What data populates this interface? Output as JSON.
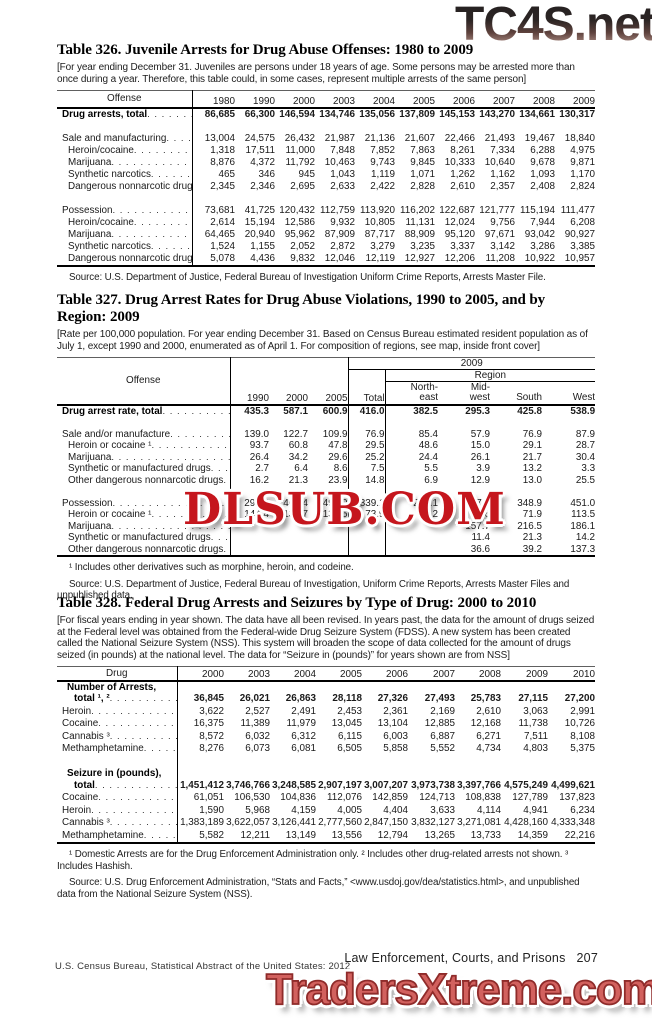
{
  "watermarks": {
    "top": "TC4S.net",
    "middle": "DLSUB.COM",
    "bottom": "TradersXtreme.com"
  },
  "colors": {
    "watermark_top_gradient": [
      "#242021",
      "#d0b8ad"
    ],
    "watermark_middle_red": "#c5161d",
    "watermark_bottom_salmon": "#d2615e"
  },
  "footer": {
    "section": "Law Enforcement, Courts, and Prisons",
    "page": "207",
    "imprint": "U.S. Census Bureau, Statistical Abstract of the United States: 2012"
  },
  "tables": [
    {
      "title": "Table 326. Juvenile Arrests for Drug Abuse Offenses: 1980 to 2009",
      "note": "[For year ending December 31. Juveniles are persons under 18 years of age. Some persons may be arrested more than once during a year. Therefore, this table could, in some cases, represent multiple arrests of the same person]",
      "header": {
        "kind": "years",
        "label": "Offense",
        "years": [
          "1980",
          "1990",
          "2000",
          "2003",
          "2004",
          "2005",
          "2006",
          "2007",
          "2008",
          "2009"
        ]
      },
      "ncols": 10,
      "vrules": [
        0
      ],
      "rows": [
        {
          "label": "Drug arrests, total",
          "b": 1,
          "v": [
            "86,685",
            "66,300",
            "146,594",
            "134,746",
            "135,056",
            "137,809",
            "145,153",
            "143,270",
            "134,661",
            "130,317"
          ]
        },
        {
          "gap": 1
        },
        {
          "label": "Sale and manufacturing",
          "v": [
            "13,004",
            "24,575",
            "26,432",
            "21,987",
            "21,136",
            "21,607",
            "22,466",
            "21,493",
            "19,467",
            "18,840"
          ]
        },
        {
          "label": "Heroin/cocaine",
          "i": 1,
          "v": [
            "1,318",
            "17,511",
            "11,000",
            "7,848",
            "7,852",
            "7,863",
            "8,261",
            "7,334",
            "6,288",
            "4,975"
          ]
        },
        {
          "label": "Marijuana",
          "i": 1,
          "v": [
            "8,876",
            "4,372",
            "11,792",
            "10,463",
            "9,743",
            "9,845",
            "10,333",
            "10,640",
            "9,678",
            "9,871"
          ]
        },
        {
          "label": "Synthetic narcotics",
          "i": 1,
          "v": [
            "465",
            "346",
            "945",
            "1,043",
            "1,119",
            "1,071",
            "1,262",
            "1,162",
            "1,093",
            "1,170"
          ]
        },
        {
          "label": "Dangerous nonnarcotic drugs",
          "i": 1,
          "v": [
            "2,345",
            "2,346",
            "2,695",
            "2,633",
            "2,422",
            "2,828",
            "2,610",
            "2,357",
            "2,408",
            "2,824"
          ]
        },
        {
          "gap": 1
        },
        {
          "label": "Possession",
          "v": [
            "73,681",
            "41,725",
            "120,432",
            "112,759",
            "113,920",
            "116,202",
            "122,687",
            "121,777",
            "115,194",
            "111,477"
          ]
        },
        {
          "label": "Heroin/cocaine",
          "i": 1,
          "v": [
            "2,614",
            "15,194",
            "12,586",
            "9,932",
            "10,805",
            "11,131",
            "12,024",
            "9,756",
            "7,944",
            "6,208"
          ]
        },
        {
          "label": "Marijuana",
          "i": 1,
          "v": [
            "64,465",
            "20,940",
            "95,962",
            "87,909",
            "87,717",
            "88,909",
            "95,120",
            "97,671",
            "93,042",
            "90,927"
          ]
        },
        {
          "label": "Synthetic narcotics",
          "i": 1,
          "v": [
            "1,524",
            "1,155",
            "2,052",
            "2,872",
            "3,279",
            "3,235",
            "3,337",
            "3,142",
            "3,286",
            "3,385"
          ]
        },
        {
          "label": "Dangerous nonnarcotic drugs",
          "i": 1,
          "v": [
            "5,078",
            "4,436",
            "9,832",
            "12,046",
            "12,119",
            "12,927",
            "12,206",
            "11,208",
            "10,922",
            "10,957"
          ]
        }
      ],
      "footnote": "",
      "source": "Source: U.S. Department of Justice, Federal Bureau of Investigation Uniform Crime Reports, Arrests Master File."
    },
    {
      "title": "Table 327. Drug Arrest Rates for Drug Abuse Violations, 1990 to 2005, and by Region: 2009",
      "note": "[Rate per 100,000 population. For year ending December 31. Based on Census Bureau estimated resident population as of July 1, except 1990 and 2000, enumerated as of April 1. For composition of regions, see map, inside front cover]",
      "header": {
        "kind": "regions",
        "label": "Offense",
        "years": [
          "1990",
          "2000",
          "2005"
        ],
        "group_year": "2009",
        "group_region": "Region",
        "total": "Total",
        "regions": [
          [
            "North-",
            "east"
          ],
          [
            "Mid-",
            "west"
          ],
          [
            "South"
          ],
          [
            "West"
          ]
        ]
      },
      "ncols": 8,
      "vrules": [
        0,
        3,
        4
      ],
      "rows": [
        {
          "label": "Drug arrest rate, total",
          "b": 1,
          "v": [
            "435.3",
            "587.1",
            "600.9",
            "416.0",
            "382.5",
            "295.3",
            "425.8",
            "538.9"
          ]
        },
        {
          "gap": 1
        },
        {
          "label": "Sale and/or manufacture",
          "v": [
            "139.0",
            "122.7",
            "109.9",
            "76.9",
            "85.4",
            "57.9",
            "76.9",
            "87.9"
          ]
        },
        {
          "label": "Heroin or cocaine ¹",
          "i": 1,
          "v": [
            "93.7",
            "60.8",
            "47.8",
            "29.5",
            "48.6",
            "15.0",
            "29.1",
            "28.7"
          ]
        },
        {
          "label": "Marijuana",
          "i": 1,
          "v": [
            "26.4",
            "34.2",
            "29.6",
            "25.2",
            "24.4",
            "26.1",
            "21.7",
            "30.4"
          ]
        },
        {
          "label": "Synthetic or manufactured drugs",
          "i": 1,
          "v": [
            "2.7",
            "6.4",
            "8.6",
            "7.5",
            "5.5",
            "3.9",
            "13.2",
            "3.3"
          ]
        },
        {
          "label": "Other dangerous nonnarcotic drugs",
          "i": 1,
          "v": [
            "16.2",
            "21.3",
            "23.9",
            "14.8",
            "6.9",
            "12.9",
            "13.0",
            "25.5"
          ]
        },
        {
          "gap": 1
        },
        {
          "label": "Possession",
          "v": [
            "296.3",
            "464.4",
            "490.9",
            "339.1",
            "297.1",
            "237.4",
            "348.9",
            "451.0"
          ]
        },
        {
          "label": "Heroin or cocaine ¹",
          "i": 1,
          "v": [
            "144.4",
            "132.7",
            "131.5",
            "73.9",
            "71.2",
            "31.6",
            "71.9",
            "113.5"
          ]
        },
        {
          "label": "Marijuana",
          "i": 1,
          "v": [
            "",
            "",
            "",
            "",
            "",
            "157.7",
            "216.5",
            "186.1"
          ]
        },
        {
          "label": "Synthetic or manufactured drugs",
          "i": 1,
          "v": [
            "",
            "",
            "",
            "",
            "",
            "11.4",
            "21.3",
            "14.2"
          ]
        },
        {
          "label": "Other dangerous nonnarcotic drugs",
          "i": 1,
          "v": [
            "",
            "",
            "",
            "",
            "",
            "36.6",
            "39.2",
            "137.3"
          ]
        }
      ],
      "footnote": "¹ Includes other derivatives such as morphine, heroin, and codeine.",
      "source": "Source: U.S. Department of Justice, Federal Bureau of Investigation, Uniform Crime Reports, Arrests Master Files and unpublished data."
    },
    {
      "title": "Table 328. Federal Drug Arrests and Seizures by Type of Drug: 2000 to 2010",
      "note": "[For fiscal years ending in year shown. The data have all been revised. In years past, the data for the amount of drugs seized at the Federal level was obtained from the Federal-wide Drug Seizure System (FDSS). A new system has been created called the National Seizure System (NSS). This system will broaden the scope of data collected for the amount of drugs seized (in pounds) at the national level.  The data for “Seizure in (pounds)” for years shown are from NSS]",
      "header": {
        "kind": "years",
        "label": "Drug",
        "years": [
          "2000",
          "2003",
          "2004",
          "2005",
          "2006",
          "2007",
          "2008",
          "2009",
          "2010"
        ]
      },
      "ncols": 9,
      "vrules": [
        0
      ],
      "rows": [
        {
          "l2": [
            "Number of Arrests,",
            "total ¹, ²"
          ],
          "v": [
            "36,845",
            "26,021",
            "26,863",
            "28,118",
            "27,326",
            "27,493",
            "25,783",
            "27,115",
            "27,200"
          ]
        },
        {
          "label": "Heroin",
          "v": [
            "3,622",
            "2,527",
            "2,491",
            "2,453",
            "2,361",
            "2,169",
            "2,610",
            "3,063",
            "2,991"
          ]
        },
        {
          "label": "Cocaine",
          "v": [
            "16,375",
            "11,389",
            "11,979",
            "13,045",
            "13,104",
            "12,885",
            "12,168",
            "11,738",
            "10,726"
          ]
        },
        {
          "label": "Cannabis ³",
          "v": [
            "8,572",
            "6,032",
            "6,312",
            "6,115",
            "6,003",
            "6,887",
            "6,271",
            "7,511",
            "8,108"
          ]
        },
        {
          "label": "Methamphetamine",
          "v": [
            "8,276",
            "6,073",
            "6,081",
            "6,505",
            "5,858",
            "5,552",
            "4,734",
            "4,803",
            "5,375"
          ]
        },
        {
          "gap": 1
        },
        {
          "l2": [
            "Seizure in (pounds),",
            "total"
          ],
          "v": [
            "1,451,412",
            "3,746,766",
            "3,248,585",
            "2,907,197",
            "3,007,207",
            "3,973,738",
            "3,397,766",
            "4,575,249",
            "4,499,621"
          ]
        },
        {
          "label": "Cocaine",
          "v": [
            "61,051",
            "106,530",
            "104,836",
            "112,076",
            "142,859",
            "124,713",
            "108,838",
            "127,789",
            "137,823"
          ]
        },
        {
          "label": "Heroin",
          "v": [
            "1,590",
            "5,968",
            "4,159",
            "4,005",
            "4,404",
            "3,633",
            "4,114",
            "4,941",
            "6,234"
          ]
        },
        {
          "label": "Cannabis ³",
          "v": [
            "1,383,189",
            "3,622,057",
            "3,126,441",
            "2,777,560",
            "2,847,150",
            "3,832,127",
            "3,271,081",
            "4,428,160",
            "4,333,348"
          ]
        },
        {
          "label": "Methamphetamine",
          "v": [
            "5,582",
            "12,211",
            "13,149",
            "13,556",
            "12,794",
            "13,265",
            "13,733",
            "14,359",
            "22,216"
          ]
        }
      ],
      "footnote": "¹ Domestic Arrests are for the Drug Enforcement Administration only. ² Includes other drug-related arrests not shown. ³ Includes Hashish.",
      "source": "Source: U.S. Drug Enforcement Administration, “Stats and Facts,” <www.usdoj.gov/dea/statistics.html>, and unpublished data from the National Seizure System (NSS)."
    }
  ]
}
